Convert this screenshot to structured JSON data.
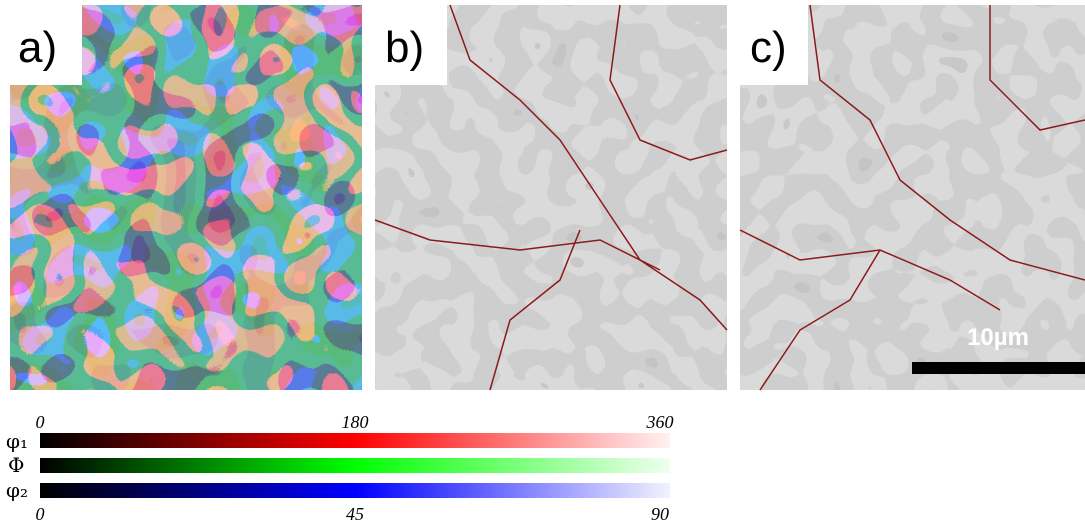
{
  "panels": [
    {
      "label": "a)"
    },
    {
      "label": "b)"
    },
    {
      "label": "c)"
    }
  ],
  "scale_bar": {
    "label": "10µm"
  },
  "colorbars": {
    "top_ticks": [
      "0",
      "180",
      "360"
    ],
    "bottom_ticks": [
      "0",
      "45",
      "90"
    ],
    "bars": [
      {
        "symbol": "φ₁"
      },
      {
        "symbol": "Φ"
      },
      {
        "symbol": "φ₂"
      }
    ]
  }
}
